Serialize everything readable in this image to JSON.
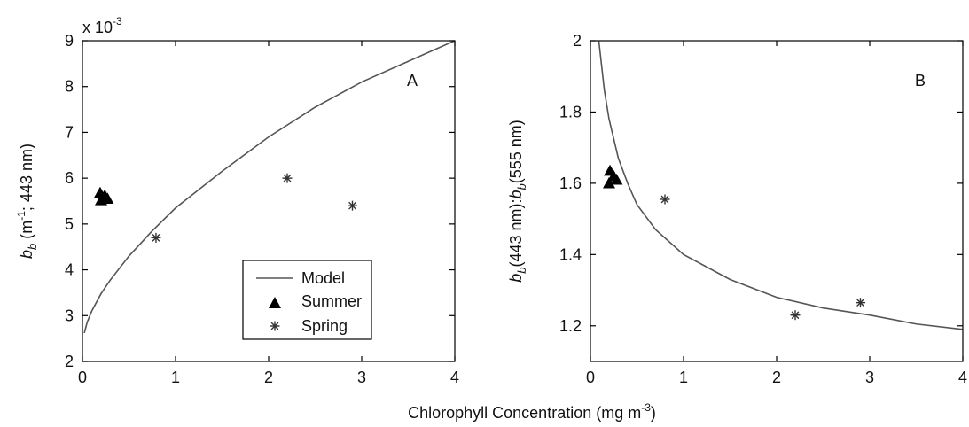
{
  "figure": {
    "xlabel_text": "Chlorophyll Concentration (mg m",
    "xlabel_sup": "-3",
    "xlabel_close": ")"
  },
  "chart_data": [
    {
      "type": "scatter",
      "panel_label": "A",
      "ylabel": {
        "main": "b",
        "sub": "b",
        "after_sub": " (m",
        "sup": "-1",
        "rest": "; 443 nm)"
      },
      "y_multiplier_prefix": "x 10",
      "y_multiplier_exp": "-3",
      "xlim": [
        0,
        4
      ],
      "ylim": [
        2,
        9
      ],
      "xticks": [
        0,
        1,
        2,
        3,
        4
      ],
      "yticks": [
        2,
        3,
        4,
        5,
        6,
        7,
        8,
        9
      ],
      "legend": {
        "placement": "lower-center",
        "entries": [
          {
            "label": "Model",
            "marker": "line"
          },
          {
            "label": "Summer",
            "marker": "triangle"
          },
          {
            "label": "Spring",
            "marker": "asterisk"
          }
        ]
      },
      "series": [
        {
          "name": "Model",
          "kind": "line",
          "points": [
            [
              0.02,
              2.62
            ],
            [
              0.05,
              2.85
            ],
            [
              0.1,
              3.1
            ],
            [
              0.2,
              3.48
            ],
            [
              0.3,
              3.78
            ],
            [
              0.5,
              4.3
            ],
            [
              0.75,
              4.85
            ],
            [
              1,
              5.35
            ],
            [
              1.5,
              6.15
            ],
            [
              2,
              6.9
            ],
            [
              2.5,
              7.55
            ],
            [
              3,
              8.1
            ],
            [
              3.5,
              8.55
            ],
            [
              4,
              9.0
            ]
          ]
        },
        {
          "name": "Summer",
          "kind": "triangle",
          "points": [
            [
              0.19,
              5.68
            ],
            [
              0.24,
              5.62
            ],
            [
              0.2,
              5.52
            ],
            [
              0.27,
              5.55
            ]
          ]
        },
        {
          "name": "Spring",
          "kind": "asterisk",
          "points": [
            [
              0.79,
              4.7
            ],
            [
              2.2,
              6.0
            ],
            [
              2.9,
              5.4
            ]
          ]
        }
      ]
    },
    {
      "type": "scatter",
      "panel_label": "B",
      "ylabel": {
        "main": "b",
        "sub": "b",
        "mid": "(443 nm):",
        "main2": "b",
        "sub2": "b",
        "rest": "(555 nm)"
      },
      "xlim": [
        0,
        4
      ],
      "ylim": [
        1.1,
        2.0
      ],
      "xticks": [
        0,
        1,
        2,
        3,
        4
      ],
      "xtick_labels": [
        "0",
        "1",
        "2",
        "3",
        "4"
      ],
      "yticks": [
        1.2,
        1.4,
        1.6,
        1.8,
        2.0
      ],
      "ytick_labels": [
        "1.2",
        "1.4",
        "1.6",
        "1.8",
        "2"
      ],
      "series": [
        {
          "name": "Model",
          "kind": "line",
          "points": [
            [
              0.09,
              2.0
            ],
            [
              0.12,
              1.93
            ],
            [
              0.15,
              1.86
            ],
            [
              0.2,
              1.78
            ],
            [
              0.3,
              1.67
            ],
            [
              0.4,
              1.6
            ],
            [
              0.5,
              1.54
            ],
            [
              0.7,
              1.47
            ],
            [
              1,
              1.4
            ],
            [
              1.5,
              1.33
            ],
            [
              2,
              1.28
            ],
            [
              2.5,
              1.25
            ],
            [
              3,
              1.23
            ],
            [
              3.5,
              1.205
            ],
            [
              4,
              1.19
            ]
          ]
        },
        {
          "name": "Summer",
          "kind": "triangle",
          "points": [
            [
              0.21,
              1.635
            ],
            [
              0.25,
              1.62
            ],
            [
              0.2,
              1.6
            ],
            [
              0.28,
              1.61
            ]
          ]
        },
        {
          "name": "Spring",
          "kind": "asterisk",
          "points": [
            [
              0.8,
              1.555
            ],
            [
              2.2,
              1.23
            ],
            [
              2.9,
              1.265
            ]
          ]
        }
      ]
    }
  ]
}
